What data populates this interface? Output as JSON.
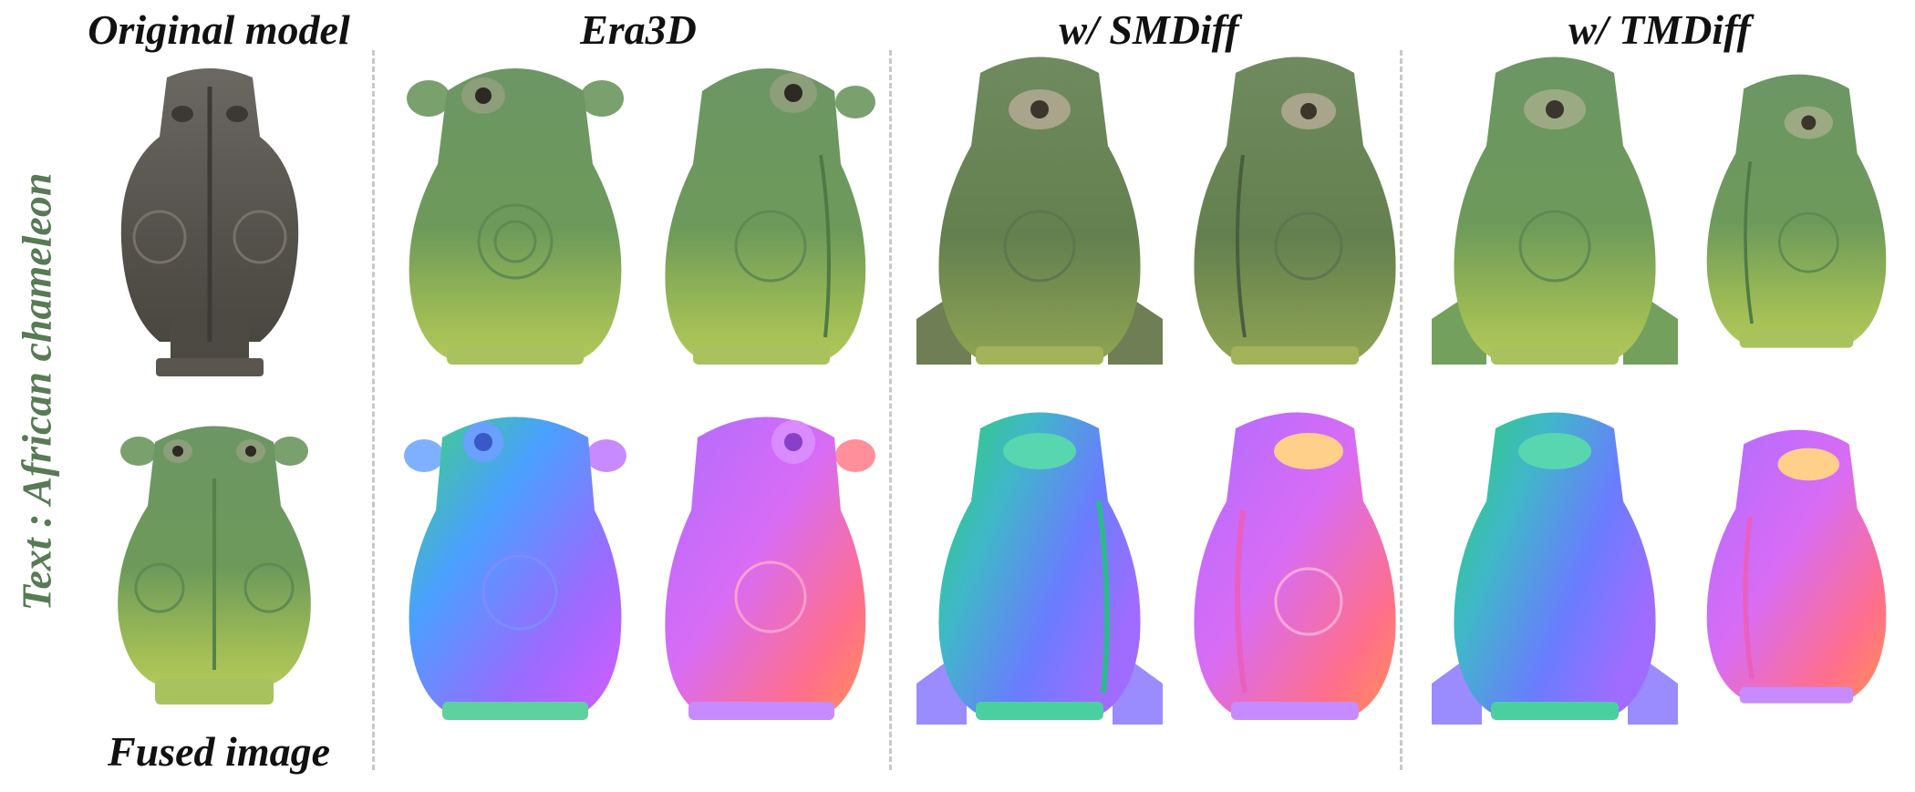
{
  "headers": {
    "original": "Original model",
    "era3d": "Era3D",
    "smdiff": "w/ SMDiff",
    "tmdiff": "w/ TMDiff"
  },
  "footer": {
    "fused": "Fused image"
  },
  "side_label": "Text : African chameleon",
  "colors": {
    "label_green": "#587a55",
    "bronze": "#5e5b55",
    "chameleon_green": "#6f9a5d",
    "chameleon_belly": "#a6c257",
    "divider": "#c8c8c8"
  }
}
